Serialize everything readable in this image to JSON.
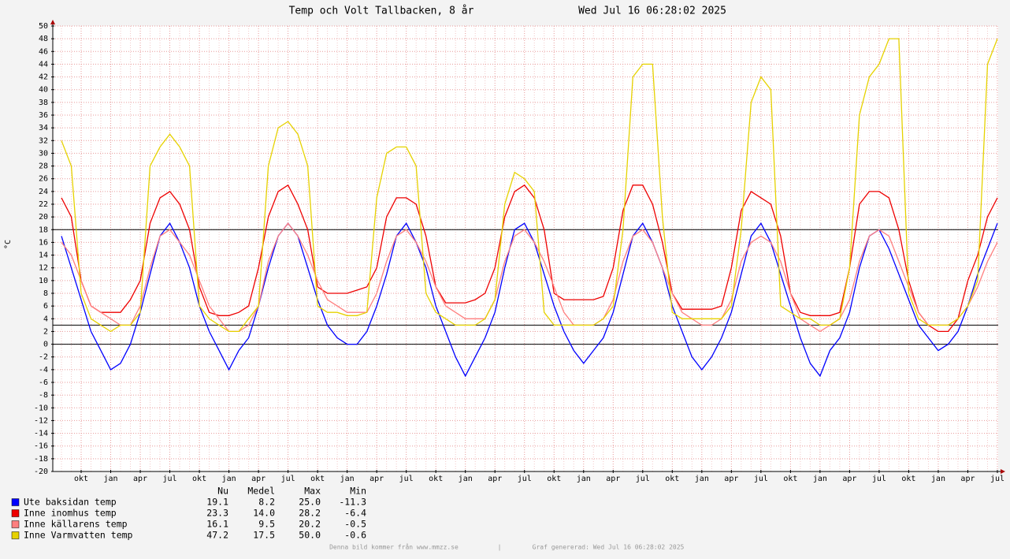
{
  "chart_data": {
    "type": "line",
    "title": "Temp och Volt Tallbacken, 8 år",
    "subtitle": "Wed Jul 16 06:28:02 2025",
    "y_label": "°C",
    "categories": [
      null,
      null,
      "okt",
      null,
      null,
      "jan",
      null,
      null,
      "apr",
      null,
      null,
      "jul",
      null,
      null,
      "okt",
      null,
      null,
      "jan",
      null,
      null,
      "apr",
      null,
      null,
      "jul",
      null,
      null,
      "okt",
      null,
      null,
      "jan",
      null,
      null,
      "apr",
      null,
      null,
      "jul",
      null,
      null,
      "okt",
      null,
      null,
      "jan",
      null,
      null,
      "apr",
      null,
      null,
      "jul",
      null,
      null,
      "okt",
      null,
      null,
      "jan",
      null,
      null,
      "apr",
      null,
      null,
      "jul",
      null,
      null,
      "okt",
      null,
      null,
      "jan",
      null,
      null,
      "apr",
      null,
      null,
      "jul",
      null,
      null,
      "okt",
      null,
      null,
      "jan",
      null,
      null,
      "apr",
      null,
      null,
      "jul",
      null,
      null,
      "okt",
      null,
      null,
      "jan",
      null,
      null,
      "apr",
      null,
      null,
      "jul"
    ],
    "ylim": [
      -20,
      50
    ],
    "yticks": [
      -20,
      -18,
      -16,
      -14,
      -12,
      -10,
      -8,
      -6,
      -4,
      -2,
      0,
      2,
      4,
      6,
      8,
      10,
      12,
      14,
      16,
      18,
      20,
      22,
      24,
      26,
      28,
      30,
      32,
      34,
      36,
      38,
      40,
      42,
      44,
      46,
      48,
      50
    ],
    "grid": true,
    "hlines": [
      0,
      3,
      18
    ],
    "series": [
      {
        "name": "Ute baksidan temp",
        "color": "#0000ff",
        "values": [
          17,
          12,
          7,
          2,
          -1,
          -4,
          -3,
          0,
          5,
          11,
          17,
          19,
          16,
          12,
          6,
          2,
          -1,
          -4,
          -1,
          1,
          6,
          12,
          17,
          19,
          17,
          12,
          7,
          3,
          1,
          0,
          0,
          2,
          6,
          11,
          17,
          19,
          16,
          12,
          6,
          2,
          -2,
          -5,
          -2,
          1,
          5,
          12,
          18,
          19,
          16,
          11,
          6,
          2,
          -1,
          -3,
          -1,
          1,
          5,
          11,
          17,
          19,
          16,
          12,
          6,
          2,
          -2,
          -4,
          -2,
          1,
          5,
          11,
          17,
          19,
          16,
          11,
          6,
          1,
          -3,
          -5,
          -1,
          1,
          5,
          12,
          17,
          18,
          15,
          11,
          7,
          3,
          1,
          -1,
          0,
          2,
          6,
          11,
          15,
          19
        ],
        "stats": [
          "19.1",
          "8.2",
          "25.0",
          "-11.3"
        ]
      },
      {
        "name": "Inne inomhus temp",
        "color": "#ee0000",
        "values": [
          23,
          20,
          10,
          6,
          5,
          5,
          5,
          7,
          10,
          19,
          23,
          24,
          22,
          18,
          9,
          5,
          4.5,
          4.5,
          5,
          6,
          12,
          20,
          24,
          25,
          22,
          18,
          9,
          8,
          8,
          8,
          8.5,
          9,
          12,
          20,
          23,
          23,
          22,
          17,
          9,
          6.5,
          6.5,
          6.5,
          7,
          8,
          12,
          20,
          24,
          25,
          23,
          18,
          8,
          7,
          7,
          7,
          7,
          7.5,
          12,
          21,
          25,
          25,
          22,
          16,
          8,
          5.5,
          5.5,
          5.5,
          5.5,
          6,
          12,
          21,
          24,
          23,
          22,
          17,
          8,
          5,
          4.5,
          4.5,
          4.5,
          5,
          12,
          22,
          24,
          24,
          23,
          18,
          10,
          5,
          3,
          2,
          2,
          4,
          10,
          14,
          20,
          23
        ],
        "stats": [
          "23.3",
          "14.0",
          "28.2",
          "-6.4"
        ]
      },
      {
        "name": "Inne källarens temp",
        "color": "#ff7f7f",
        "values": [
          16,
          14,
          10,
          6,
          5,
          4,
          3,
          3,
          6,
          12,
          17,
          18,
          16,
          14,
          10,
          6,
          4,
          2,
          2,
          3,
          6,
          13,
          17,
          19,
          17,
          14,
          10,
          7,
          6,
          5,
          5,
          5,
          8,
          13,
          17,
          18,
          16,
          13,
          9,
          6,
          5,
          4,
          4,
          4,
          7,
          13,
          17,
          18,
          16,
          13,
          9,
          5,
          3,
          3,
          3,
          4,
          7,
          13,
          17,
          18,
          16,
          12,
          8,
          5,
          4,
          3,
          3,
          4,
          7,
          13,
          16,
          17,
          16,
          13,
          8,
          4,
          3,
          2,
          3,
          4,
          7,
          13,
          17,
          18,
          17,
          13,
          9,
          5,
          3,
          3,
          3,
          4,
          6,
          9,
          13,
          16
        ],
        "stats": [
          "16.1",
          "9.5",
          "20.2",
          "-0.5"
        ]
      },
      {
        "name": "Inne Varmvatten temp",
        "color": "#e6d200",
        "values": [
          32,
          28,
          8,
          4,
          3,
          2,
          3,
          3,
          5,
          28,
          31,
          33,
          31,
          28,
          6,
          4,
          3,
          2,
          2,
          4,
          6,
          28,
          34,
          35,
          33,
          28,
          6,
          5,
          5,
          4.5,
          4.5,
          5,
          23,
          30,
          31,
          31,
          28,
          8,
          5,
          4,
          3,
          3,
          3,
          4,
          7,
          22,
          27,
          26,
          24,
          5,
          3,
          3,
          3,
          3,
          3,
          4,
          6,
          18,
          42,
          44,
          44,
          20,
          5,
          4,
          4,
          4,
          4,
          4,
          6,
          18,
          38,
          42,
          40,
          6,
          5,
          4,
          4,
          3,
          3,
          4,
          12,
          36,
          42,
          44,
          48,
          48,
          8,
          4,
          3,
          3,
          3,
          4,
          6,
          10,
          44,
          48
        ],
        "stats": [
          "47.2",
          "17.5",
          "50.0",
          "-0.6"
        ]
      }
    ],
    "stats_header": [
      "Nu",
      "Medel",
      "Max",
      "Min"
    ],
    "footer": [
      "Denna bild kommer från www.mmzz.se",
      "|",
      "Graf genererad: Wed Jul 16 06:28:02 2025"
    ]
  }
}
